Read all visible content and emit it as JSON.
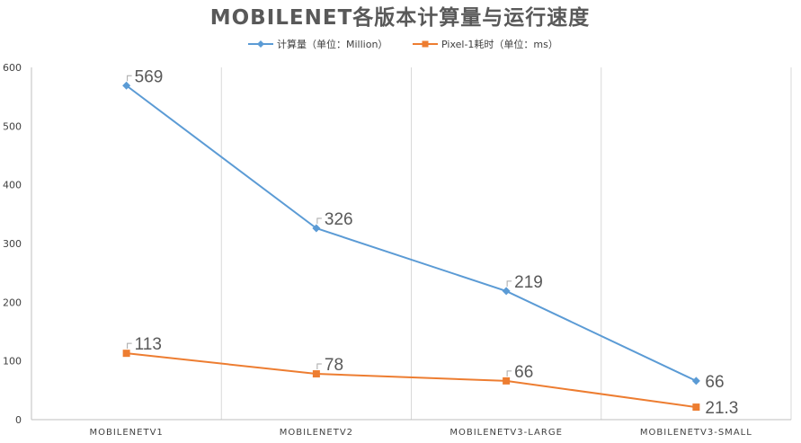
{
  "chart_data": {
    "type": "line",
    "title": "MOBILENET各版本计算量与运行速度",
    "categories": [
      "MOBILENETV1",
      "MOBILENETV2",
      "MOBILENETV3-LARGE",
      "MOBILENETV3-SMALL"
    ],
    "series": [
      {
        "name": "计算量（单位：Million）",
        "values": [
          569,
          326,
          219,
          66
        ],
        "labels": [
          "569",
          "326",
          "219",
          "66"
        ],
        "color": "#5b9bd5",
        "marker": "diamond"
      },
      {
        "name": "Pixel-1耗时（单位：ms）",
        "values": [
          113,
          78,
          66,
          21.3
        ],
        "labels": [
          "113",
          "78",
          "66",
          "21.3"
        ],
        "color": "#ed7d31",
        "marker": "square"
      }
    ],
    "yticks": [
      "0",
      "100",
      "200",
      "300",
      "400",
      "500",
      "600"
    ],
    "ylim": [
      0,
      600
    ],
    "xlabel": "",
    "ylabel": "",
    "grid": true,
    "legend": "top"
  }
}
